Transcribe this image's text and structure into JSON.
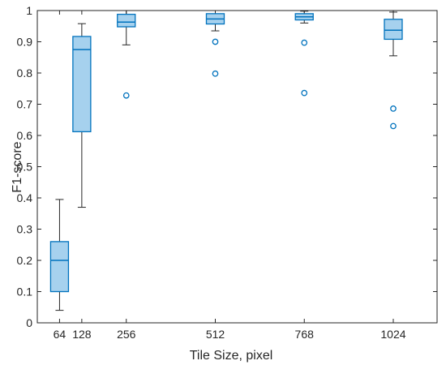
{
  "chart_data": {
    "type": "box",
    "xlabel": "Tile Size, pixel",
    "ylabel": "F1-score",
    "ylim": [
      0,
      1
    ],
    "xlim": [
      0,
      1150
    ],
    "yticks": [
      "0",
      "0.1",
      "0.2",
      "0.3",
      "0.4",
      "0.5",
      "0.6",
      "0.7",
      "0.8",
      "0.9",
      "1"
    ],
    "grid": false,
    "box_color": "#0072BD",
    "box_fill": "#A6D1EE",
    "whisker_color": "#262626",
    "boxes": [
      {
        "label": "64",
        "x": 64,
        "whisker_low": 0.04,
        "q1": 0.1,
        "median": 0.2,
        "q3": 0.26,
        "whisker_high": 0.395,
        "outliers": []
      },
      {
        "label": "128",
        "x": 128,
        "whisker_low": 0.37,
        "q1": 0.612,
        "median": 0.875,
        "q3": 0.917,
        "whisker_high": 0.958,
        "outliers": []
      },
      {
        "label": "256",
        "x": 256,
        "whisker_low": 0.89,
        "q1": 0.948,
        "median": 0.963,
        "q3": 0.988,
        "whisker_high": 1.0,
        "outliers": [
          0.728
        ]
      },
      {
        "label": "512",
        "x": 512,
        "whisker_low": 0.935,
        "q1": 0.957,
        "median": 0.973,
        "q3": 0.99,
        "whisker_high": 1.0,
        "outliers": [
          0.9,
          0.798
        ]
      },
      {
        "label": "768",
        "x": 768,
        "whisker_low": 0.96,
        "q1": 0.97,
        "median": 0.98,
        "q3": 0.99,
        "whisker_high": 0.998,
        "outliers": [
          0.897,
          0.736
        ]
      },
      {
        "label": "1024",
        "x": 1024,
        "whisker_low": 0.855,
        "q1": 0.908,
        "median": 0.937,
        "q3": 0.972,
        "whisker_high": 0.995,
        "outliers": [
          0.686,
          0.63
        ]
      }
    ]
  }
}
